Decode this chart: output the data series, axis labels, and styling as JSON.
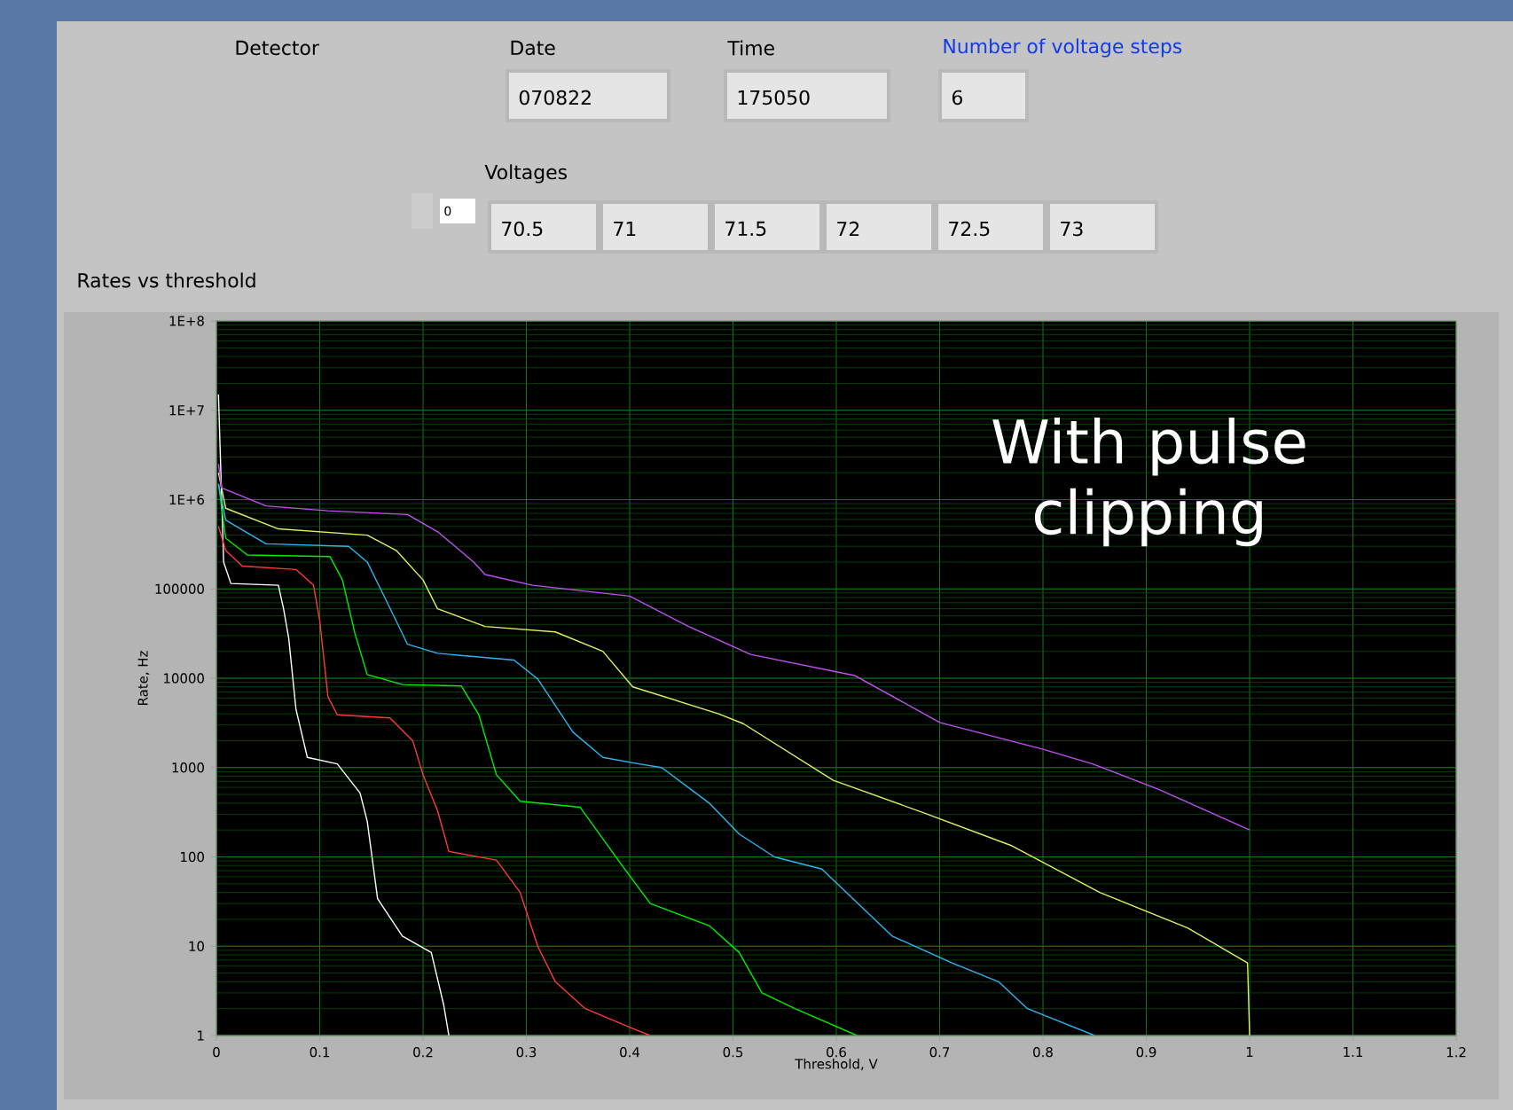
{
  "chart_data": {
    "type": "line",
    "title": "Rates vs threshold",
    "xlabel": "Threshold, V",
    "ylabel": "Rate, Hz",
    "annotations": [
      "Detector",
      "Date",
      "070822",
      "Time",
      "175050",
      "Number of voltage steps",
      "6",
      "Voltages",
      "0",
      "70.5",
      "71",
      "71.5",
      "72",
      "72.5",
      "73",
      "With pulse clipping"
    ],
    "xlim": [
      0,
      1.2
    ],
    "ylim": [
      1,
      100000000
    ],
    "xticks": [
      {
        "value": 0,
        "label": "0"
      },
      0.1,
      0.2,
      0.3,
      0.4,
      0.5,
      0.6,
      0.7,
      0.8,
      0.9,
      {
        "value": 1,
        "label": "1"
      },
      1.1,
      1.2
    ],
    "yticks": [
      1,
      10,
      100,
      1000,
      10000,
      100000,
      {
        "value": 1000000,
        "label": "1E+6"
      },
      {
        "value": 10000000,
        "label": "1E+7"
      },
      {
        "value": 100000000,
        "label": "1E+8"
      }
    ],
    "log": "y",
    "grid": true,
    "series": [
      {
        "color": "#ffffff",
        "x": [
          0.002,
          0.007,
          0.014,
          0.06,
          0.065,
          0.07,
          0.077,
          0.088,
          0.117,
          0.139,
          0.146,
          0.156,
          0.18,
          0.208,
          0.22,
          0.225
        ],
        "values": [
          15000000,
          200000,
          115000,
          110000,
          60000,
          28000,
          4500,
          1300,
          1100,
          520,
          250,
          34,
          13,
          8.5,
          2.2,
          1
        ]
      },
      {
        "color": "#ff3a3a",
        "x": [
          0.002,
          0.009,
          0.025,
          0.077,
          0.094,
          0.1,
          0.108,
          0.117,
          0.168,
          0.19,
          0.2,
          0.214,
          0.225,
          0.271,
          0.294,
          0.311,
          0.328,
          0.357,
          0.403,
          0.42
        ],
        "values": [
          500000,
          270000,
          180000,
          165000,
          110000,
          44000,
          6200,
          3900,
          3600,
          2000,
          830,
          330,
          115,
          92,
          40,
          10,
          4,
          2,
          1.2,
          1
        ]
      },
      {
        "color": "#00ee00",
        "x": [
          0.002,
          0.009,
          0.03,
          0.11,
          0.122,
          0.134,
          0.146,
          0.18,
          0.237,
          0.254,
          0.271,
          0.294,
          0.352,
          0.391,
          0.42,
          0.477,
          0.506,
          0.528,
          0.56,
          0.62
        ],
        "values": [
          1500000,
          370000,
          240000,
          230000,
          126000,
          32000,
          11000,
          8500,
          8200,
          3900,
          830,
          420,
          360,
          85,
          30,
          17,
          8.5,
          3,
          2,
          1
        ]
      },
      {
        "color": "#30b4f0",
        "x": [
          0.002,
          0.009,
          0.048,
          0.128,
          0.146,
          0.163,
          0.185,
          0.214,
          0.288,
          0.311,
          0.345,
          0.374,
          0.409,
          0.431,
          0.477,
          0.506,
          0.54,
          0.586,
          0.654,
          0.712,
          0.757,
          0.785,
          0.85
        ],
        "values": [
          1500000,
          590000,
          320000,
          300000,
          200000,
          80000,
          24000,
          19000,
          16000,
          9800,
          2500,
          1300,
          1100,
          1000,
          400,
          180,
          100,
          73,
          13,
          6.5,
          4,
          2,
          1
        ]
      },
      {
        "color": "#e0f064",
        "x": [
          0.002,
          0.009,
          0.06,
          0.146,
          0.174,
          0.2,
          0.214,
          0.26,
          0.328,
          0.374,
          0.403,
          0.486,
          0.51,
          0.597,
          0.683,
          0.77,
          0.855,
          0.94,
          0.998,
          1.0
        ],
        "values": [
          2000000,
          800000,
          470000,
          400000,
          270000,
          126000,
          60000,
          38000,
          33000,
          20000,
          8000,
          4000,
          3100,
          720,
          316,
          133,
          40,
          16,
          6.5,
          1
        ]
      },
      {
        "color": "#c050f0",
        "x": [
          0.002,
          0.005,
          0.048,
          0.108,
          0.185,
          0.215,
          0.249,
          0.26,
          0.306,
          0.4,
          0.457,
          0.517,
          0.618,
          0.7,
          0.8,
          0.848,
          0.912,
          1.0
        ],
        "values": [
          2500000,
          1350000,
          850000,
          750000,
          680000,
          430000,
          200000,
          145000,
          110000,
          83000,
          38000,
          18500,
          10700,
          3200,
          1600,
          1100,
          570,
          200
        ]
      }
    ]
  }
}
